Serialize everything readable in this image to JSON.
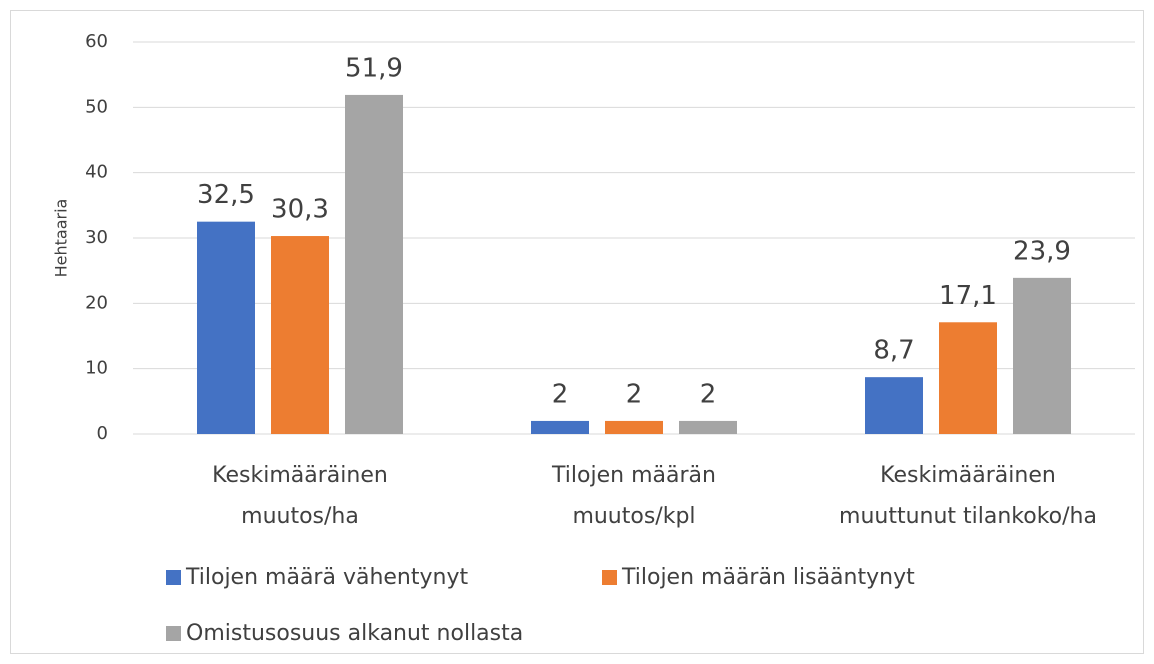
{
  "chart_data": {
    "type": "bar",
    "y_label": "Hehtaaria",
    "categories": [
      [
        "Keskimääräinen",
        "muutos/ha"
      ],
      [
        "Tilojen määrän",
        "muutos/kpl"
      ],
      [
        "Keskimääräinen",
        "muuttunut tilankoko/ha"
      ]
    ],
    "series": [
      {
        "name": "Tilojen määrä vähentynyt",
        "color": "#4472c4",
        "values": [
          32.5,
          2,
          8.7
        ],
        "value_labels": [
          "32,5",
          "2",
          "8,7"
        ]
      },
      {
        "name": "Tilojen määrän lisääntynyt",
        "color": "#ed7d31",
        "values": [
          30.3,
          2,
          17.1
        ],
        "value_labels": [
          "30,3",
          "2",
          "17,1"
        ]
      },
      {
        "name": "Omistusosuus alkanut nollasta",
        "color": "#a5a5a5",
        "values": [
          51.9,
          2,
          23.9
        ],
        "value_labels": [
          "51,9",
          "2",
          "23,9"
        ]
      }
    ],
    "ylim": [
      0,
      60
    ],
    "yticks": [
      0,
      10,
      20,
      30,
      40,
      50,
      60
    ],
    "grid": true,
    "legend": "bottom"
  }
}
